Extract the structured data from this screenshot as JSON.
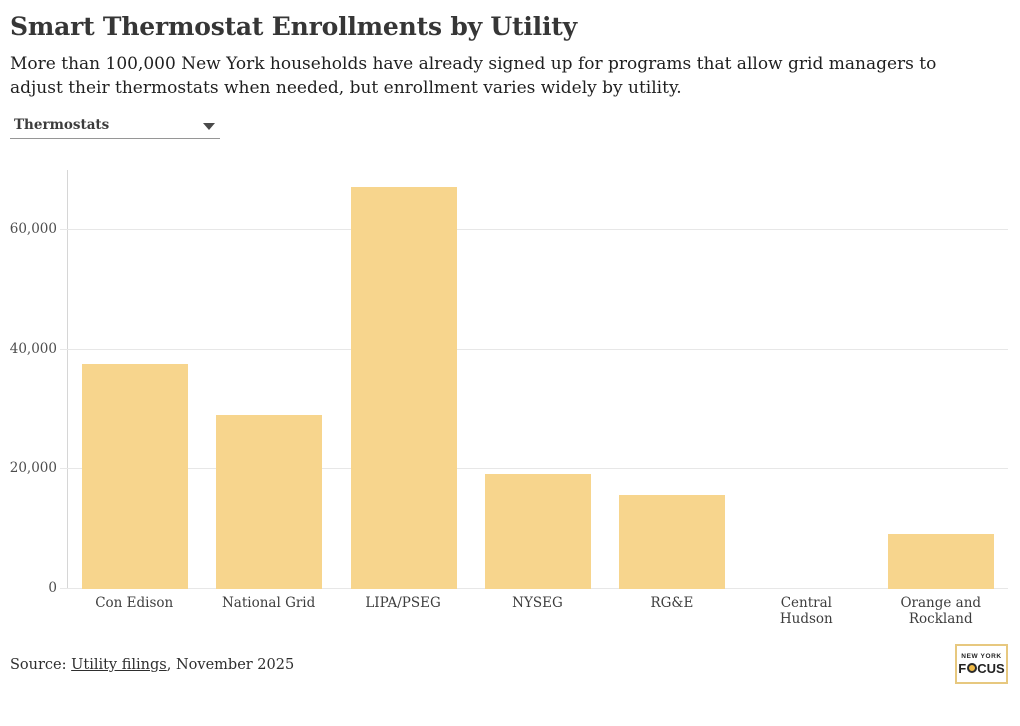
{
  "header": {
    "title": "Smart Thermostat Enrollments by Utility",
    "subtitle": "More than 100,000 New York households have already signed up for programs that allow grid managers to adjust their thermostats when needed, but enrollment varies widely by utility."
  },
  "controls": {
    "dropdown_label": "Thermostats"
  },
  "chart_data": {
    "type": "bar",
    "categories": [
      "Con Edison",
      "National Grid",
      "LIPA/PSEG",
      "NYSEG",
      "RG&E",
      "Central Hudson",
      "Orange and Rockland"
    ],
    "values": [
      37600,
      29000,
      67200,
      19200,
      15700,
      0,
      9200
    ],
    "title": "Smart Thermostat Enrollments by Utility",
    "xlabel": "",
    "ylabel": "",
    "ylim": [
      0,
      70000
    ],
    "yticks": [
      0,
      20000,
      40000,
      60000
    ],
    "grid": true,
    "legend": false,
    "bar_color": "#f7d58d"
  },
  "footer": {
    "source_prefix": "Source: ",
    "source_link": "Utility filings",
    "source_suffix": ", November 2025",
    "logo_line1": "NEW YORK",
    "logo_f": "F",
    "logo_rest": "CUS"
  }
}
